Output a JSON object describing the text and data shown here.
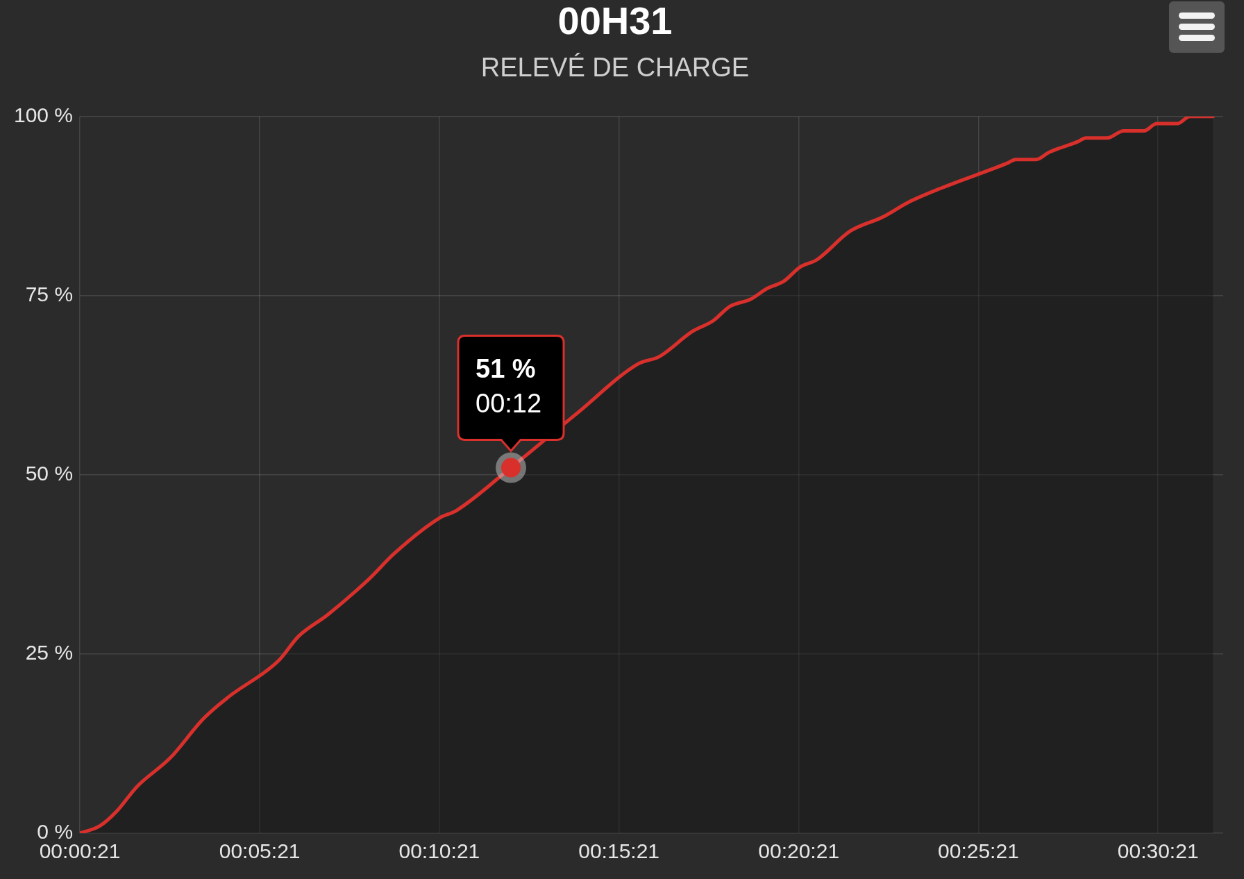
{
  "chart_data": {
    "type": "area",
    "title": "00H31",
    "subtitle": "RELEVÉ DE CHARGE",
    "x": [
      0.0058,
      0.015,
      0.0227,
      0.0323,
      0.0477,
      0.0632,
      0.0747,
      0.0977,
      0.1073,
      0.1208,
      0.14,
      0.1515,
      0.1727,
      0.1803,
      0.2057,
      0.236,
      0.2648,
      0.2745,
      0.2898,
      0.2995,
      0.3072,
      0.3168,
      0.3245,
      0.3322,
      0.3398,
      0.3475,
      0.363,
      0.3783,
      0.3898,
      0.4052,
      0.436,
      0.4398,
      0.4493,
      0.4552,
      0.4687,
      0.4723,
      0.4822,
      0.4898,
      0.4993,
      0.5052,
      0.5148,
      0.5205,
      0.5313
    ],
    "series": [
      {
        "color": "#d9302c",
        "values": [
          0,
          1,
          3,
          6.5,
          10.5,
          16,
          19,
          24,
          27.5,
          30.5,
          35.5,
          39,
          44,
          45,
          51,
          58.5,
          65.5,
          66.5,
          70,
          71.5,
          73.5,
          74.5,
          76,
          77,
          79,
          80,
          84,
          86,
          88,
          90,
          93.5,
          94,
          94,
          95,
          96.5,
          97,
          97,
          98,
          98,
          99,
          99,
          100,
          100
        ]
      }
    ],
    "xlim": [
      0.0058,
      0.536
    ],
    "xticks": [
      {
        "value": 0.0058,
        "label": "00:00:21"
      },
      {
        "value": 0.0892,
        "label": "00:05:21"
      },
      {
        "value": 0.1725,
        "label": "00:10:21"
      },
      {
        "value": 0.2558,
        "label": "00:15:21"
      },
      {
        "value": 0.3392,
        "label": "00:20:21"
      },
      {
        "value": 0.4225,
        "label": "00:25:21"
      },
      {
        "value": 0.5058,
        "label": "00:30:21"
      }
    ],
    "ylim": [
      0,
      100
    ],
    "yticks": [
      {
        "value": 0,
        "label": "0 %"
      },
      {
        "value": 25,
        "label": "25 %"
      },
      {
        "value": 50,
        "label": "50 %"
      },
      {
        "value": 75,
        "label": "75 %"
      },
      {
        "value": 100,
        "label": "100 %"
      }
    ],
    "grid": true,
    "legend": false,
    "marker": "none",
    "line_style": "solid",
    "annotations": [
      {
        "text": "51 %\n00:12",
        "x": 0.2057,
        "y": 51
      }
    ]
  }
}
